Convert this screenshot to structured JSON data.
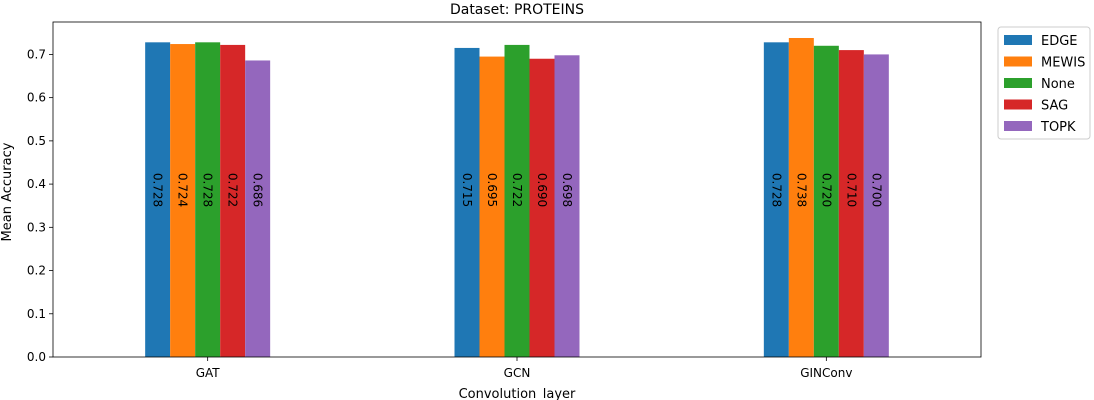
{
  "chart_data": {
    "type": "bar",
    "title": "Dataset: PROTEINS",
    "xlabel": "Convolution_layer",
    "ylabel": "Mean Accuracy",
    "categories": [
      "GAT",
      "GCN",
      "GINConv"
    ],
    "ylim": [
      0,
      0.775
    ],
    "yticks": [
      "0.0",
      "0.1",
      "0.2",
      "0.3",
      "0.4",
      "0.5",
      "0.6",
      "0.7"
    ],
    "grid": false,
    "legend_position": "upper-right-outside",
    "series": [
      {
        "name": "EDGE",
        "color": "#1f77b4",
        "values": [
          0.728,
          0.715,
          0.728
        ],
        "labels": [
          "0.728",
          "0.715",
          "0.728"
        ]
      },
      {
        "name": "MEWIS",
        "color": "#ff7f0e",
        "values": [
          0.724,
          0.695,
          0.738
        ],
        "labels": [
          "0.724",
          "0.695",
          "0.738"
        ]
      },
      {
        "name": "None",
        "color": "#2ca02c",
        "values": [
          0.728,
          0.722,
          0.72
        ],
        "labels": [
          "0.728",
          "0.722",
          "0.720"
        ]
      },
      {
        "name": "SAG",
        "color": "#d62728",
        "values": [
          0.722,
          0.69,
          0.71
        ],
        "labels": [
          "0.722",
          "0.690",
          "0.710"
        ]
      },
      {
        "name": "TOPK",
        "color": "#9467bd",
        "values": [
          0.686,
          0.698,
          0.7
        ],
        "labels": [
          "0.686",
          "0.698",
          "0.700"
        ]
      }
    ]
  }
}
